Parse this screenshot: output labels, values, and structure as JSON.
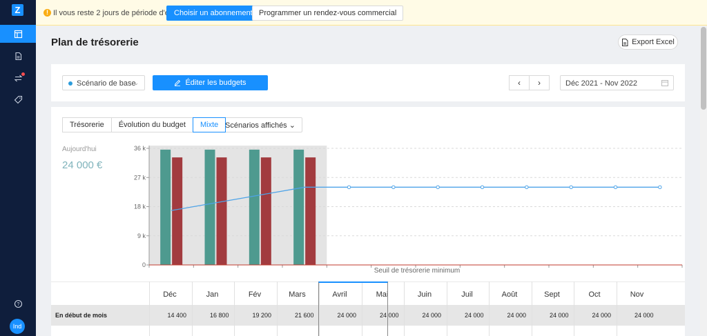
{
  "app": {
    "logo_letter": "Z",
    "avatar_initials": "Ind"
  },
  "nav": {
    "items": [
      {
        "icon": "dashboard-icon",
        "active": true
      },
      {
        "icon": "document-icon",
        "active": false
      },
      {
        "icon": "transfer-icon",
        "active": false,
        "badge": true
      },
      {
        "icon": "tag-icon",
        "active": false
      }
    ],
    "help_icon": "help-icon"
  },
  "banner": {
    "message": "Il vous reste 2 jours de période d'essai.",
    "subscribe_label": "Choisir un abonnement",
    "meeting_label": "Programmer un rendez-vous commercial"
  },
  "page": {
    "title": "Plan de trésorerie",
    "export_label": "Export Excel"
  },
  "toolbar": {
    "scenario_label": "Scénario de base",
    "edit_budgets_label": "Éditer les budgets",
    "prev_label": "‹",
    "next_label": "›",
    "date_range": "Déc 2021 - Nov 2022"
  },
  "tabs": [
    {
      "label": "Trésorerie",
      "active": false
    },
    {
      "label": "Évolution du budget",
      "active": false
    },
    {
      "label": "Mixte",
      "active": true
    }
  ],
  "scenarios_button": "Scénarios affichés",
  "today": {
    "label": "Aujourd'hui",
    "value": "24 000 €"
  },
  "chart_data": {
    "type": "bar",
    "categories": [
      "Déc",
      "Jan",
      "Fév",
      "Mars",
      "Avril",
      "Mai",
      "Juin",
      "Juil",
      "Août",
      "Sept",
      "Oct",
      "Nov"
    ],
    "y_ticks": [
      "0",
      "9 k",
      "18 k",
      "27 k",
      "36 k"
    ],
    "ylim": [
      0,
      36000
    ],
    "threshold_label": "Seuil de trésorerie minimum",
    "threshold_value": 0,
    "past_months": 4,
    "series": [
      {
        "kind": "bar",
        "color": "#4e9a8f",
        "values": [
          35600,
          35600,
          35600,
          35600,
          null,
          null,
          null,
          null,
          null,
          null,
          null,
          null
        ]
      },
      {
        "kind": "bar",
        "color": "#a23b3f",
        "values": [
          33200,
          33200,
          33200,
          33200,
          null,
          null,
          null,
          null,
          null,
          null,
          null,
          null
        ]
      },
      {
        "kind": "line",
        "color": "#4da3e8",
        "values": [
          16800,
          19200,
          21600,
          24000,
          24000,
          24000,
          24000,
          24000,
          24000,
          24000,
          24000,
          24000
        ]
      }
    ],
    "grid": true
  },
  "table": {
    "months": [
      "Déc",
      "Jan",
      "Fév",
      "Mars",
      "Avril",
      "Mai",
      "Juin",
      "Juil",
      "Août",
      "Sept",
      "Oct",
      "Nov"
    ],
    "rows": [
      {
        "label": "En début de mois",
        "values": [
          "14 400",
          "16 800",
          "19 200",
          "21 600",
          "24 000",
          "24 000",
          "24 000",
          "24 000",
          "24 000",
          "24 000",
          "24 000",
          "24 000"
        ]
      }
    ]
  }
}
